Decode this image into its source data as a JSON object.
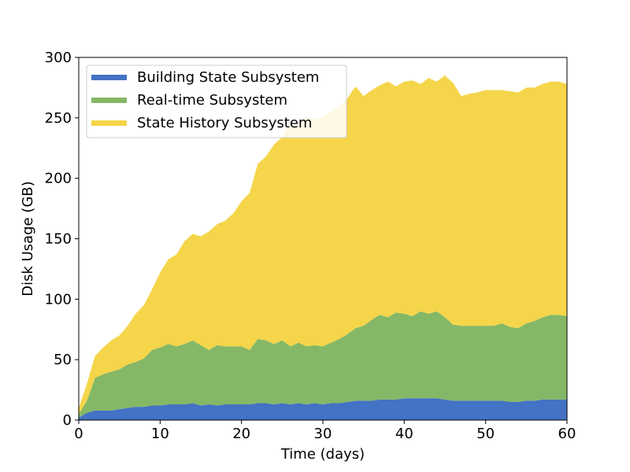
{
  "chart_data": {
    "type": "area",
    "stacked": true,
    "title": "",
    "xlabel": "Time (days)",
    "ylabel": "Disk Usage (GB)",
    "xlim": [
      0,
      60
    ],
    "ylim": [
      0,
      300
    ],
    "xticks": [
      0,
      10,
      20,
      30,
      40,
      50,
      60
    ],
    "yticks": [
      0,
      50,
      100,
      150,
      200,
      250,
      300
    ],
    "grid": false,
    "legend_position": "top-left",
    "x": [
      0,
      1,
      2,
      3,
      4,
      5,
      6,
      7,
      8,
      9,
      10,
      11,
      12,
      13,
      14,
      15,
      16,
      17,
      18,
      19,
      20,
      21,
      22,
      23,
      24,
      25,
      26,
      27,
      28,
      29,
      30,
      31,
      32,
      33,
      34,
      35,
      36,
      37,
      38,
      39,
      40,
      41,
      42,
      43,
      44,
      45,
      46,
      47,
      48,
      49,
      50,
      51,
      52,
      53,
      54,
      55,
      56,
      57,
      58,
      59,
      60
    ],
    "series": [
      {
        "name": "Building State Subsystem",
        "color": "#4472c4",
        "values": [
          2,
          6,
          8,
          8,
          8,
          9,
          10,
          11,
          11,
          12,
          12,
          13,
          13,
          13,
          14,
          12,
          13,
          12,
          13,
          13,
          13,
          13,
          14,
          14,
          13,
          14,
          13,
          14,
          13,
          14,
          13,
          14,
          14,
          15,
          16,
          16,
          16,
          17,
          17,
          17,
          18,
          18,
          18,
          18,
          18,
          17,
          16,
          16,
          16,
          16,
          16,
          16,
          16,
          15,
          15,
          16,
          16,
          17,
          17,
          17,
          17
        ]
      },
      {
        "name": "Real-time Subsystem",
        "color": "#85b866",
        "values": [
          3,
          10,
          27,
          30,
          32,
          33,
          36,
          37,
          40,
          46,
          48,
          50,
          48,
          50,
          52,
          50,
          45,
          50,
          48,
          48,
          48,
          45,
          53,
          52,
          50,
          52,
          48,
          50,
          48,
          48,
          48,
          50,
          53,
          56,
          60,
          62,
          67,
          70,
          68,
          72,
          70,
          68,
          72,
          70,
          72,
          68,
          63,
          62,
          62,
          62,
          62,
          62,
          64,
          62,
          61,
          64,
          66,
          68,
          70,
          70,
          69
        ]
      },
      {
        "name": "State History Subsystem",
        "color": "#f5d54a",
        "values": [
          5,
          14,
          18,
          22,
          26,
          28,
          32,
          40,
          44,
          50,
          62,
          70,
          76,
          85,
          88,
          90,
          98,
          100,
          104,
          110,
          120,
          130,
          145,
          152,
          165,
          168,
          185,
          180,
          190,
          187,
          190,
          192,
          193,
          195,
          200,
          190,
          190,
          190,
          195,
          187,
          192,
          195,
          188,
          195,
          190,
          200,
          200,
          190,
          192,
          193,
          195,
          195,
          193,
          195,
          195,
          195,
          193,
          193,
          193,
          193,
          192
        ]
      }
    ]
  }
}
